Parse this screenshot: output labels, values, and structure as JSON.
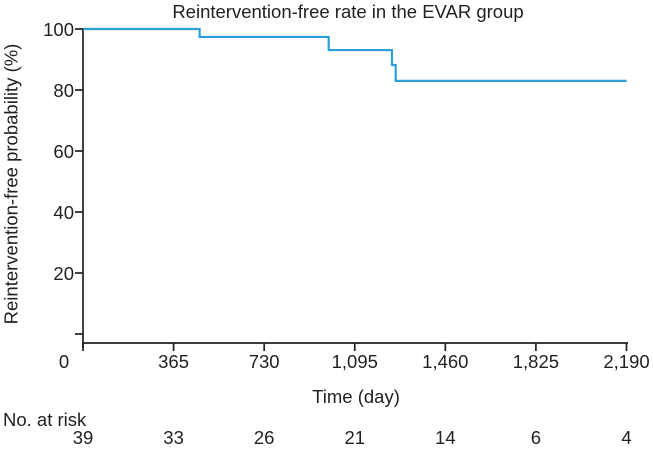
{
  "chart_data": {
    "type": "line",
    "subtype": "kaplan-meier-step",
    "title": "Reintervention-free rate in the EVAR group",
    "xlabel": "Time (day)",
    "ylabel": "Reintervention-free probability (%)",
    "xlim": [
      0,
      2190
    ],
    "ylim": [
      0,
      100
    ],
    "grid": false,
    "legend": "none",
    "xticks": [
      {
        "v": 0,
        "label": "0"
      },
      {
        "v": 365,
        "label": "365"
      },
      {
        "v": 730,
        "label": "730"
      },
      {
        "v": 1095,
        "label": "1,095"
      },
      {
        "v": 1460,
        "label": "1,460"
      },
      {
        "v": 1825,
        "label": "1,825"
      },
      {
        "v": 2190,
        "label": "2,190"
      }
    ],
    "yticks": [
      {
        "v": 100,
        "label": "100"
      },
      {
        "v": 80,
        "label": "80"
      },
      {
        "v": 60,
        "label": "60"
      },
      {
        "v": 40,
        "label": "40"
      },
      {
        "v": 20,
        "label": "20"
      },
      {
        "v": 0,
        "label": ""
      }
    ],
    "series": [
      {
        "name": "EVAR",
        "color": "#2d9fd7",
        "points": [
          {
            "day": 0,
            "pct": 100.0
          },
          {
            "day": 470,
            "pct": 97.4
          },
          {
            "day": 990,
            "pct": 93.1
          },
          {
            "day": 1245,
            "pct": 88.2
          },
          {
            "day": 1260,
            "pct": 83.0
          },
          {
            "day": 2190,
            "pct": 83.0
          }
        ]
      }
    ],
    "at_risk": {
      "label": "No. at risk",
      "counts": [
        {
          "day": 0,
          "n": "39"
        },
        {
          "day": 365,
          "n": "33"
        },
        {
          "day": 730,
          "n": "26"
        },
        {
          "day": 1095,
          "n": "21"
        },
        {
          "day": 1460,
          "n": "14"
        },
        {
          "day": 1825,
          "n": "6"
        },
        {
          "day": 2190,
          "n": "4"
        }
      ]
    },
    "colors": {
      "curve": "#2d9fd7",
      "axis": "#231f20",
      "text": "#231f20"
    }
  }
}
